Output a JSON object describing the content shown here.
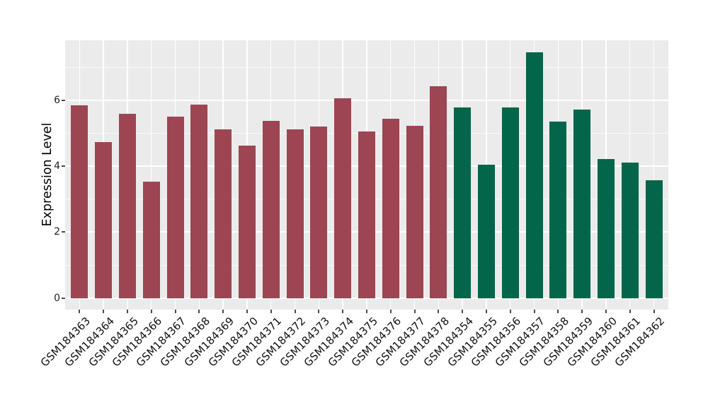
{
  "chart_data": {
    "type": "bar",
    "title": "",
    "xlabel": "",
    "ylabel": "Expression Level",
    "categories": [
      "GSM184363",
      "GSM184364",
      "GSM184365",
      "GSM184366",
      "GSM184367",
      "GSM184368",
      "GSM184369",
      "GSM184370",
      "GSM184371",
      "GSM184372",
      "GSM184373",
      "GSM184374",
      "GSM184375",
      "GSM184376",
      "GSM184377",
      "GSM184378",
      "GSM184354",
      "GSM184355",
      "GSM184356",
      "GSM184357",
      "GSM184358",
      "GSM184359",
      "GSM184360",
      "GSM184361",
      "GSM184362"
    ],
    "values": [
      5.85,
      4.72,
      5.58,
      3.52,
      5.5,
      5.86,
      5.12,
      4.62,
      5.38,
      5.12,
      5.2,
      6.05,
      5.06,
      5.43,
      5.22,
      6.43,
      5.78,
      4.04,
      5.77,
      7.45,
      5.34,
      5.71,
      4.22,
      4.1,
      3.57
    ],
    "groups": [
      "group1",
      "group1",
      "group1",
      "group1",
      "group1",
      "group1",
      "group1",
      "group1",
      "group1",
      "group1",
      "group1",
      "group1",
      "group1",
      "group1",
      "group1",
      "group1",
      "group2",
      "group2",
      "group2",
      "group2",
      "group2",
      "group2",
      "group2",
      "group2",
      "group2"
    ],
    "group_colors": {
      "group1": "#9D4553",
      "group2": "#03654A"
    },
    "ylim": [
      0,
      7.8
    ],
    "yticks": [
      0,
      2,
      4,
      6
    ],
    "yticks_minor": [
      1,
      3,
      5,
      7
    ],
    "grid": true,
    "legend": false,
    "panel_bg": "#EBEBEB",
    "grid_color": "#FFFFFF",
    "tick_color": "#4A4A4A",
    "text_color": "#1F1F1F"
  }
}
